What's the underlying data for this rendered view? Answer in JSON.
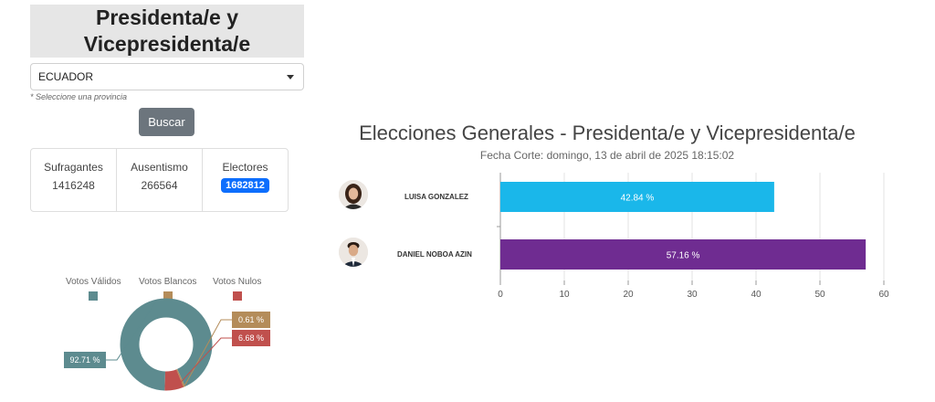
{
  "header": {
    "title_line1": "Presidenta/e y",
    "title_line2": "Vicepresidenta/e"
  },
  "filter": {
    "selected": "ECUADOR",
    "hint": "* Seleccione una provincia",
    "search_button": "Buscar"
  },
  "stats": {
    "sufragantes": {
      "label": "Sufragantes",
      "value": "1416248"
    },
    "ausentismo": {
      "label": "Ausentismo",
      "value": "266564"
    },
    "electores": {
      "label": "Electores",
      "value": "1682812"
    }
  },
  "votes_summary": {
    "legend": [
      {
        "label": "Votos Válidos",
        "color": "#5d8b8f"
      },
      {
        "label": "Votos Blancos",
        "color": "#b48c5a"
      },
      {
        "label": "Votos Nulos",
        "color": "#c0504d"
      }
    ],
    "labels": {
      "validos": "92.71 %",
      "blancos": "0.61 %",
      "nulos": "6.68 %"
    }
  },
  "results": {
    "title": "Elecciones Generales - Presidenta/e y Vicepresidenta/e",
    "subtitle": "Fecha Corte: domingo, 13 de abril de 2025 18:15:02",
    "candidates": [
      {
        "name": "LUISA GONZALEZ",
        "value_label": "42.84 %"
      },
      {
        "name": "DANIEL NOBOA AZIN",
        "value_label": "57.16 %"
      }
    ]
  },
  "chart_data": [
    {
      "type": "pie",
      "categories": [
        "Votos Válidos",
        "Votos Blancos",
        "Votos Nulos"
      ],
      "values": [
        92.71,
        0.61,
        6.68
      ],
      "colors": [
        "#5d8b8f",
        "#b48c5a",
        "#c0504d"
      ],
      "legend": "top"
    },
    {
      "type": "bar",
      "orientation": "horizontal",
      "categories": [
        "LUISA GONZALEZ",
        "DANIEL NOBOA AZIN"
      ],
      "values": [
        42.84,
        57.16
      ],
      "colors": [
        "#1ab7ea",
        "#6f2c91"
      ],
      "xlim": [
        0,
        60
      ],
      "xticks": [
        0,
        10,
        20,
        30,
        40,
        50,
        60
      ],
      "grid": true
    }
  ]
}
